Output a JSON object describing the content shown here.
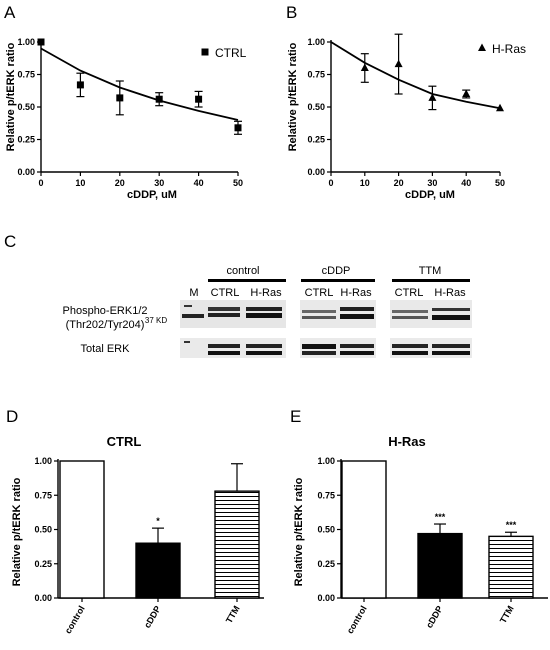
{
  "panels": {
    "A": "A",
    "B": "B",
    "C": "C",
    "D": "D",
    "E": "E"
  },
  "chart_data": [
    {
      "panel": "A",
      "type": "scatter",
      "curve": "exponential-decay",
      "xlabel": "cDDP, uM",
      "ylabel": "Relative p/tERK ratio",
      "xlim": [
        0,
        50
      ],
      "ylim": [
        0,
        1.0
      ],
      "xticks": [
        "0",
        "10",
        "20",
        "30",
        "40",
        "50"
      ],
      "yticks": [
        "0.00",
        "0.25",
        "0.50",
        "0.75",
        "1.00"
      ],
      "legend": "top-right",
      "series": [
        {
          "name": "CTRL",
          "marker": "square",
          "x": [
            0,
            10,
            20,
            30,
            40,
            50
          ],
          "y": [
            1.0,
            0.67,
            0.57,
            0.56,
            0.56,
            0.34
          ],
          "err": [
            0,
            0.09,
            0.13,
            0.05,
            0.06,
            0.05
          ],
          "fit_y": [
            0.95,
            0.78,
            0.65,
            0.55,
            0.47,
            0.4
          ]
        }
      ]
    },
    {
      "panel": "B",
      "type": "scatter",
      "curve": "exponential-decay",
      "xlabel": "cDDP, uM",
      "ylabel": "Relative p/tERK ratio",
      "xlim": [
        0,
        50
      ],
      "ylim": [
        0,
        1.0
      ],
      "xticks": [
        "0",
        "10",
        "20",
        "30",
        "40",
        "50"
      ],
      "yticks": [
        "0.00",
        "0.25",
        "0.50",
        "0.75",
        "1.00"
      ],
      "legend": "top-right",
      "series": [
        {
          "name": "H-Ras",
          "marker": "triangle",
          "x": [
            10,
            20,
            30,
            40,
            50
          ],
          "y": [
            0.8,
            0.83,
            0.57,
            0.6,
            0.49
          ],
          "err": [
            0.11,
            0.23,
            0.09,
            0.03,
            0
          ],
          "fit_y": [
            1.0,
            0.84,
            0.71,
            0.6,
            0.54,
            0.49
          ]
        }
      ]
    },
    {
      "panel": "D",
      "type": "bar",
      "title": "CTRL",
      "ylabel": "Relative p/tERK ratio",
      "ylim": [
        0,
        1.0
      ],
      "yticks": [
        "0.00",
        "0.25",
        "0.50",
        "0.75",
        "1.00"
      ],
      "categories": [
        "control",
        "cDDP",
        "TTM"
      ],
      "values": [
        1.0,
        0.4,
        0.78
      ],
      "err": [
        0,
        0.11,
        0.2
      ],
      "fills": [
        "white",
        "black",
        "hstripes"
      ],
      "sig": [
        "",
        "*",
        ""
      ]
    },
    {
      "panel": "E",
      "type": "bar",
      "title": "H-Ras",
      "ylabel": "Relative p/tERK ratio",
      "ylim": [
        0,
        1.0
      ],
      "yticks": [
        "0.00",
        "0.25",
        "0.50",
        "0.75",
        "1.00"
      ],
      "categories": [
        "control",
        "cDDP",
        "TTM"
      ],
      "values": [
        1.0,
        0.47,
        0.45
      ],
      "err": [
        0,
        0.07,
        0.03
      ],
      "fills": [
        "white",
        "black",
        "hstripes"
      ],
      "sig": [
        "",
        "***",
        "***"
      ]
    }
  ],
  "blot": {
    "marker_lane": "M",
    "marker_size": "37 KD",
    "groups": [
      {
        "name": "control",
        "lanes": [
          "CTRL",
          "H-Ras"
        ]
      },
      {
        "name": "cDDP",
        "lanes": [
          "CTRL",
          "H-Ras"
        ]
      },
      {
        "name": "TTM",
        "lanes": [
          "CTRL",
          "H-Ras"
        ]
      }
    ],
    "row_labels": [
      "Phospho-ERK1/2",
      "(Thr202/Tyr204)",
      "Total ERK"
    ]
  }
}
